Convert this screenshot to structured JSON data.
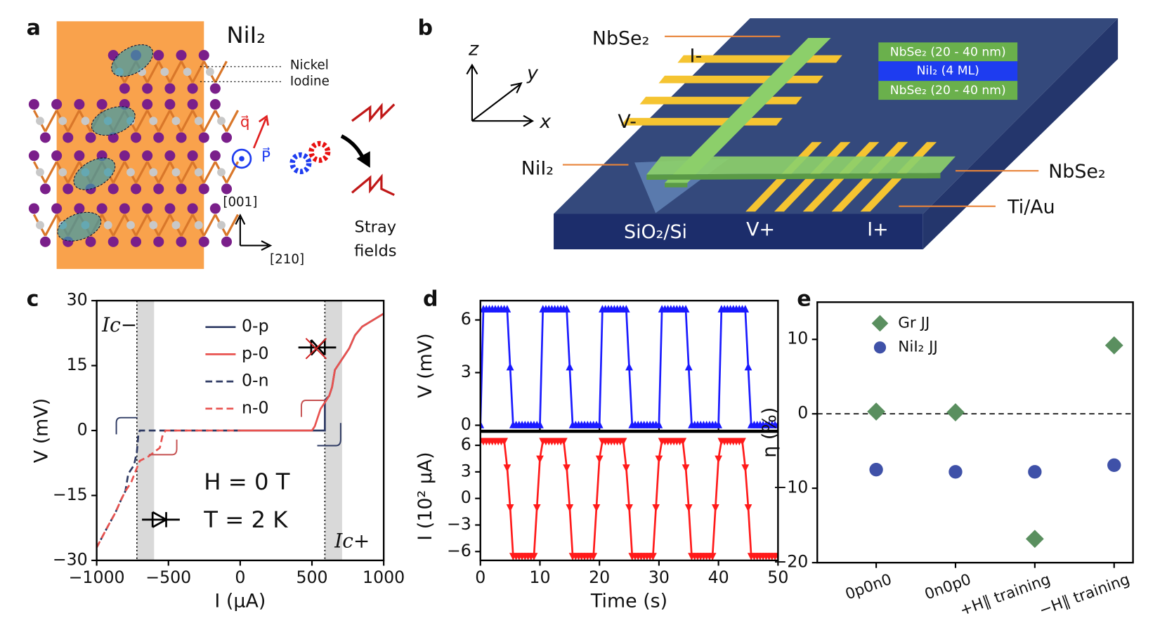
{
  "panels": {
    "a": {
      "panel_label": "a",
      "title": "NiI₂",
      "nickel": "Nickel",
      "iodine": "Iodine",
      "q": "q⃗",
      "p": "P⃗",
      "axis_up": "[001]",
      "axis_right": "[210]",
      "stray_1": "Stray",
      "stray_2": "fields"
    },
    "b": {
      "panel_label": "b",
      "axis_z": "z",
      "axis_y": "y",
      "axis_x": "x",
      "top_nbse2": "NbSe₂",
      "i_minus": "I-",
      "v_minus": "V-",
      "nii2": "NiI₂",
      "right_nbse2": "NbSe₂",
      "tiau": "Ti/Au",
      "substrate": "SiO₂/Si",
      "v_plus": "V+",
      "i_plus": "I+",
      "stack": [
        "NbSe₂ (20 - 40 nm)",
        "NiI₂ (4 ML)",
        "NbSe₂ (20 - 40 nm)"
      ]
    }
  },
  "chart_data": [
    {
      "type": "line",
      "panel_label": "c",
      "xlabel": "I (μA)",
      "ylabel": "V (mV)",
      "xlim": [
        -1000,
        1000
      ],
      "xticks": [
        {
          "value": -1000,
          "label": "−1000"
        },
        {
          "value": -500,
          "label": "−500"
        },
        0,
        500,
        1000
      ],
      "ylim": [
        -30,
        30
      ],
      "yticks": [
        {
          "value": -30,
          "label": "−30"
        },
        {
          "value": -15,
          "label": "−15"
        },
        0,
        15,
        30
      ],
      "bands": [
        [
          -720,
          -600
        ],
        [
          590,
          710
        ]
      ],
      "vlines": [
        -720,
        590
      ],
      "annotations": [
        "Ic−",
        "Ic+",
        "H = 0 T",
        "T = 2 K"
      ],
      "series": [
        {
          "name": "0-p",
          "color": "#2e3a63",
          "dash": false,
          "x": [
            0,
            300,
            590,
            590,
            620,
            640,
            660,
            700,
            720,
            760,
            800,
            850,
            900,
            1000
          ],
          "values": [
            0,
            0,
            0,
            7,
            8,
            10,
            14,
            16,
            17,
            19,
            22,
            24,
            25,
            27
          ]
        },
        {
          "name": "p-0",
          "color": "#e8524f",
          "dash": false,
          "x": [
            1000,
            900,
            850,
            800,
            760,
            720,
            700,
            660,
            640,
            620,
            600,
            560,
            520,
            500,
            -50
          ],
          "values": [
            27,
            25,
            24,
            22,
            19,
            17,
            16,
            14,
            10,
            8,
            7,
            5,
            1,
            0,
            0
          ]
        },
        {
          "name": "0-n",
          "color": "#2e3a63",
          "dash": true,
          "x": [
            0,
            -700,
            -710,
            -720,
            -740,
            -780,
            -800,
            -830,
            -870,
            -920,
            -1000
          ],
          "values": [
            0,
            0,
            -1,
            -5,
            -8,
            -10,
            -14,
            -16,
            -19,
            -22,
            -27
          ]
        },
        {
          "name": "n-0",
          "color": "#e8524f",
          "dash": true,
          "x": [
            -1000,
            -920,
            -870,
            -830,
            -800,
            -760,
            -700,
            -640,
            -600,
            -560,
            -540,
            -520,
            0
          ],
          "values": [
            -27,
            -22,
            -19,
            -16,
            -14,
            -12,
            -7,
            -6,
            -5,
            -4,
            -1,
            0,
            0
          ]
        }
      ]
    },
    {
      "type": "line",
      "panel_label": "d",
      "ylabel": "V (mV)",
      "xlim": [
        0,
        50
      ],
      "ylim": [
        -0.3,
        7.1
      ],
      "yticks": [
        0,
        3,
        6
      ],
      "x": [
        0,
        0.5,
        1,
        1.5,
        2,
        2.5,
        3,
        3.5,
        4,
        4.5,
        5,
        5.5,
        6,
        6.5,
        7,
        7.5,
        8,
        8.5,
        9,
        9.5,
        10,
        10.5,
        11,
        11.5,
        12,
        12.5,
        13,
        13.5,
        14,
        14.5,
        15,
        15.5,
        16,
        16.5,
        17,
        17.5,
        18,
        18.5,
        19,
        19.5,
        20,
        20.5,
        21,
        21.5,
        22,
        22.5,
        23,
        23.5,
        24,
        24.5,
        25,
        25.5,
        26,
        26.5,
        27,
        27.5,
        28,
        28.5,
        29,
        29.5,
        30,
        30.5,
        31,
        31.5,
        32,
        32.5,
        33,
        33.5,
        34,
        34.5,
        35,
        35.5,
        36,
        36.5,
        37,
        37.5,
        38,
        38.5,
        39,
        39.5,
        40,
        40.5,
        41,
        41.5,
        42,
        42.5,
        43,
        43.5,
        44,
        44.5,
        45,
        45.5,
        46,
        46.5,
        47,
        47.5,
        48,
        48.5,
        49,
        49.5,
        50
      ],
      "series": [
        {
          "color": "#1a1aff",
          "marker": "up",
          "values": [
            0,
            6.6,
            6.6,
            6.6,
            6.6,
            6.6,
            6.6,
            6.6,
            6.6,
            6.6,
            3.3,
            0,
            0,
            0,
            0,
            0,
            0,
            0,
            0,
            0,
            0,
            6.6,
            6.6,
            6.6,
            6.6,
            6.6,
            6.6,
            6.6,
            6.6,
            6.6,
            3.3,
            0,
            0,
            0,
            0,
            0,
            0,
            0,
            0,
            0,
            0,
            6.6,
            6.6,
            6.6,
            6.6,
            6.6,
            6.6,
            6.6,
            6.6,
            6.6,
            3.3,
            0,
            0,
            0,
            0,
            0,
            0,
            0,
            0,
            0,
            0,
            6.6,
            6.6,
            6.6,
            6.6,
            6.6,
            6.6,
            6.6,
            6.6,
            6.6,
            3.3,
            0,
            0,
            0,
            0,
            0,
            0,
            0,
            0,
            0,
            0,
            6.6,
            6.6,
            6.6,
            6.6,
            6.6,
            6.6,
            6.6,
            6.6,
            6.6,
            3.3,
            0,
            0,
            0,
            0,
            0,
            0,
            0,
            0,
            0,
            0
          ]
        }
      ]
    },
    {
      "type": "line",
      "xlabel": "Time (s)",
      "ylabel": "I (10² μA)",
      "xlim": [
        0,
        50
      ],
      "xticks": [
        0,
        10,
        20,
        30,
        40,
        50
      ],
      "ylim": [
        -7,
        7.5
      ],
      "yticks": [
        {
          "value": -6,
          "label": "−6"
        },
        {
          "value": -3,
          "label": "−3"
        },
        0,
        3,
        6
      ],
      "x": [
        0,
        0.5,
        1,
        1.5,
        2,
        2.5,
        3,
        3.5,
        4,
        4.5,
        5,
        5.5,
        6,
        6.5,
        7,
        7.5,
        8,
        8.5,
        9,
        9.5,
        10,
        10.5,
        11,
        11.5,
        12,
        12.5,
        13,
        13.5,
        14,
        14.5,
        15,
        15.5,
        16,
        16.5,
        17,
        17.5,
        18,
        18.5,
        19,
        19.5,
        20,
        20.5,
        21,
        21.5,
        22,
        22.5,
        23,
        23.5,
        24,
        24.5,
        25,
        25.5,
        26,
        26.5,
        27,
        27.5,
        28,
        28.5,
        29,
        29.5,
        30,
        30.5,
        31,
        31.5,
        32,
        32.5,
        33,
        33.5,
        34,
        34.5,
        35,
        35.5,
        36,
        36.5,
        37,
        37.5,
        38,
        38.5,
        39,
        39.5,
        40,
        40.5,
        41,
        41.5,
        42,
        42.5,
        43,
        43.5,
        44,
        44.5,
        45,
        45.5,
        46,
        46.5,
        47,
        47.5,
        48,
        48.5,
        49,
        49.5,
        50
      ],
      "series": [
        {
          "color": "#ff1a1a",
          "marker": "down",
          "values": [
            6.5,
            6.5,
            6.5,
            6.5,
            6.5,
            6.5,
            6.5,
            6.5,
            6.5,
            3.5,
            -1,
            -6.5,
            -6.5,
            -6.5,
            -6.5,
            -6.5,
            -6.5,
            -6.5,
            -6.5,
            -1,
            4.5,
            6.5,
            6.5,
            6.5,
            6.5,
            6.5,
            6.5,
            6.5,
            6.5,
            3.5,
            -1,
            -6.5,
            -6.5,
            -6.5,
            -6.5,
            -6.5,
            -6.5,
            -6.5,
            -6.5,
            -1,
            4.5,
            6.5,
            6.5,
            6.5,
            6.5,
            6.5,
            6.5,
            6.5,
            6.5,
            3.5,
            -1,
            -6.5,
            -6.5,
            -6.5,
            -6.5,
            -6.5,
            -6.5,
            -6.5,
            -6.5,
            -1,
            4.5,
            6.5,
            6.5,
            6.5,
            6.5,
            6.5,
            6.5,
            6.5,
            6.5,
            3.5,
            -1,
            -6.5,
            -6.5,
            -6.5,
            -6.5,
            -6.5,
            -6.5,
            -6.5,
            -6.5,
            -1,
            4.5,
            6.5,
            6.5,
            6.5,
            6.5,
            6.5,
            6.5,
            6.5,
            6.5,
            3.5,
            -1,
            -6.5,
            -6.5,
            -6.5,
            -6.5,
            -6.5,
            -6.5,
            -6.5,
            -6.5,
            -6.5,
            -6.5
          ]
        }
      ]
    },
    {
      "type": "scatter",
      "panel_label": "e",
      "ylabel": "η (%)",
      "categories": [
        "0p0n0",
        "0n0p0",
        "+H∥ training",
        "−H∥ training"
      ],
      "ylim": [
        -20,
        15
      ],
      "yticks": [
        {
          "value": -20,
          "label": "−20"
        },
        {
          "value": -10,
          "label": "−10"
        },
        0,
        10
      ],
      "reference_line": 0,
      "legend": "upper left",
      "series": [
        {
          "name": "Gr JJ",
          "color": "#5a8f5f",
          "marker": "diamond",
          "values": [
            0.3,
            0.2,
            -16.8,
            9.2
          ]
        },
        {
          "name": "NiI₂ JJ",
          "color": "#3f51a8",
          "marker": "circle",
          "values": [
            -7.5,
            -7.8,
            -7.8,
            -6.9
          ]
        }
      ]
    }
  ]
}
